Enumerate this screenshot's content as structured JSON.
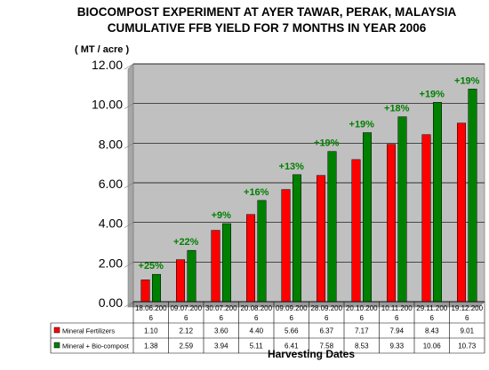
{
  "chart_data": {
    "type": "bar",
    "title": "BIOCOMPOST EXPERIMENT AT AYER TAWAR, PERAK, MALAYSIA",
    "subtitle": "CUMULATIVE FFB YIELD FOR 7 MONTHS IN YEAR 2006",
    "ylabel": "( MT / acre )",
    "xlabel": "Harvesting Dates",
    "ylim": [
      0,
      12
    ],
    "yticks": [
      "0.00",
      "2.00",
      "4.00",
      "6.00",
      "8.00",
      "10.00",
      "12.00"
    ],
    "grid": true,
    "categories": [
      [
        "18.06.200",
        "6"
      ],
      [
        "09.07.200",
        "6"
      ],
      [
        "30.07.200",
        "6"
      ],
      [
        "20.08.200",
        "6"
      ],
      [
        "09.09.200",
        "6"
      ],
      [
        "28.09.200",
        "6"
      ],
      [
        "20.10.200",
        "6"
      ],
      [
        "10.11.200",
        "6"
      ],
      [
        "29.11.200",
        "6"
      ],
      [
        "19.12.200",
        "6"
      ]
    ],
    "series": [
      {
        "name": "Mineral Fertilizers",
        "color": "#ff0000",
        "values": [
          1.1,
          2.12,
          3.6,
          4.4,
          5.66,
          6.37,
          7.17,
          7.94,
          8.43,
          9.01
        ],
        "labels": [
          "1.10",
          "2.12",
          "3.60",
          "4.40",
          "5.66",
          "6.37",
          "7.17",
          "7.94",
          "8.43",
          "9.01"
        ]
      },
      {
        "name": "Mineral + Bio-compost",
        "color": "#008000",
        "values": [
          1.38,
          2.59,
          3.94,
          5.11,
          6.41,
          7.58,
          8.53,
          9.33,
          10.06,
          10.73
        ],
        "labels": [
          "1.38",
          "2.59",
          "3.94",
          "5.11",
          "6.41",
          "7.58",
          "8.53",
          "9.33",
          "10.06",
          "10.73"
        ]
      }
    ],
    "annotations": [
      "+25%",
      "+22%",
      "+9%",
      "+16%",
      "+13%",
      "+19%",
      "+19%",
      "+18%",
      "+19%",
      "+19%"
    ],
    "annotation_color": "#008000",
    "plot_background": "#c0c0c0",
    "legend_placement": "data-table"
  }
}
